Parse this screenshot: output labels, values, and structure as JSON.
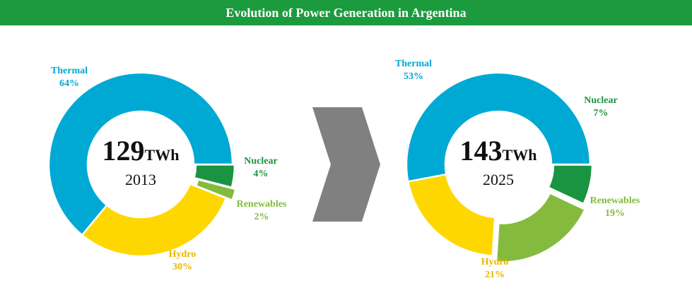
{
  "title": "Evolution of Power Generation in Argentina",
  "colors": {
    "header": "#1c9a3e",
    "thermal": "#00a9d4",
    "hydro": "#ffd700",
    "nuclear": "#1a9440",
    "renewables": "#84bb3f",
    "arrow": "#808080"
  },
  "chart_data": [
    {
      "type": "pie",
      "style": "donut",
      "total_value": "129",
      "unit": "TWh",
      "year": "2013",
      "slices": [
        {
          "label": "Thermal",
          "value": 64,
          "value_label": "64%",
          "color": "#00a9d4"
        },
        {
          "label": "Nuclear",
          "value": 4,
          "value_label": "4%",
          "color": "#1a9440"
        },
        {
          "label": "Renewables",
          "value": 2,
          "value_label": "2%",
          "color": "#84bb3f"
        },
        {
          "label": "Hydro",
          "value": 30,
          "value_label": "30%",
          "color": "#ffd700"
        }
      ]
    },
    {
      "type": "pie",
      "style": "donut",
      "total_value": "143",
      "unit": "TWh",
      "year": "2025",
      "slices": [
        {
          "label": "Thermal",
          "value": 53,
          "value_label": "53%",
          "color": "#00a9d4"
        },
        {
          "label": "Nuclear",
          "value": 7,
          "value_label": "7%",
          "color": "#1a9440"
        },
        {
          "label": "Renewables",
          "value": 19,
          "value_label": "19%",
          "color": "#84bb3f"
        },
        {
          "label": "Hydro",
          "value": 21,
          "value_label": "21%",
          "color": "#ffd700"
        }
      ]
    }
  ]
}
